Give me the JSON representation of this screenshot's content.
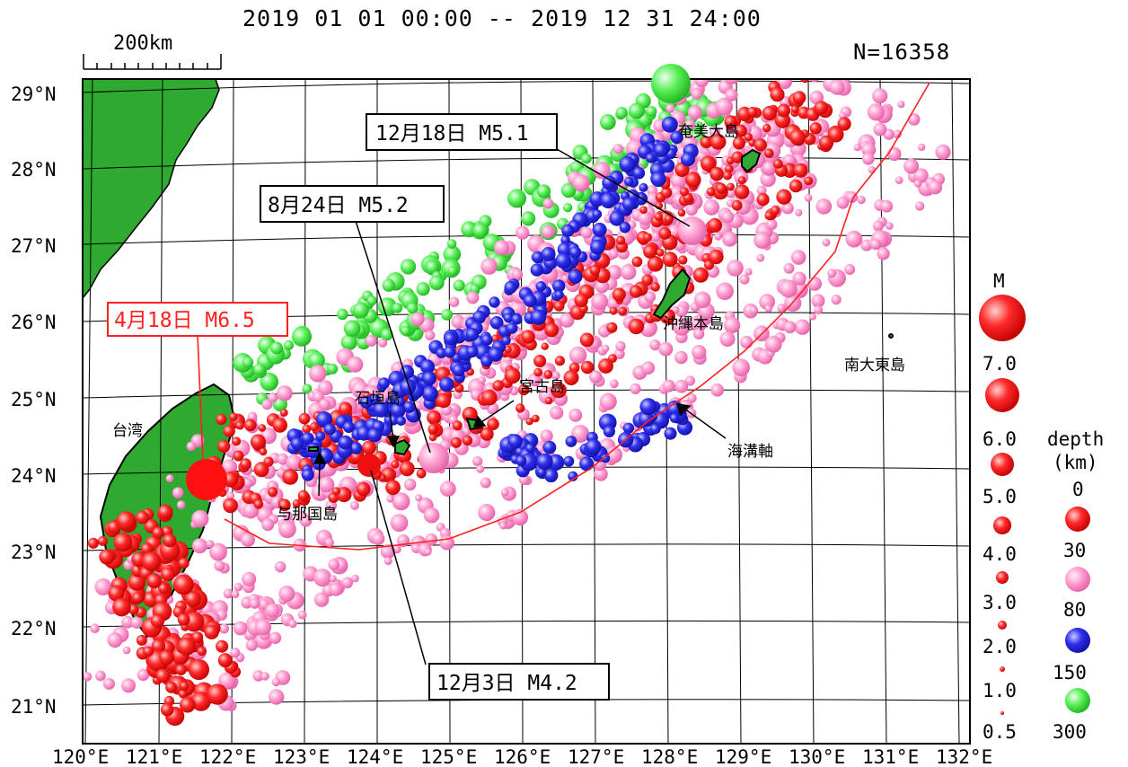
{
  "header": {
    "period": "2019 01 01 00:00 -- 2019 12 31 24:00",
    "count": "N=16358",
    "scale_label": "200km"
  },
  "colors": {
    "land": "#2fa92f",
    "shallow": "#ff2020",
    "mid": "#ff88c8",
    "deep": "#2a2ae8",
    "vdeep": "#44ee44",
    "trench": "#ff2020"
  },
  "axes": {
    "lat_labels": [
      "29°N",
      "28°N",
      "27°N",
      "26°N",
      "25°N",
      "24°N",
      "23°N",
      "22°N",
      "21°N"
    ],
    "lon_labels": [
      "120°E",
      "121°E",
      "122°E",
      "123°E",
      "124°E",
      "125°E",
      "126°E",
      "127°E",
      "128°E",
      "129°E",
      "130°E",
      "131°E",
      "132°E"
    ]
  },
  "places": {
    "amami": "奄美大島",
    "okinawa": "沖縄本島",
    "minamidaito": "南大東島",
    "miyako": "宮古島",
    "ishigaki": "石垣島",
    "yonaguni": "与那国島",
    "taiwan": "台湾",
    "trench": "海溝軸"
  },
  "events": [
    {
      "label": "12月18日 M5.1",
      "date": "12月18日",
      "mag": 5.1
    },
    {
      "label": "8月24日 M5.2",
      "date": "8月24日",
      "mag": 5.2
    },
    {
      "label": "4月18日 M6.5",
      "date": "4月18日",
      "mag": 6.5
    },
    {
      "label": "12月3日 M4.2",
      "date": "12月3日",
      "mag": 4.2
    }
  ],
  "legend": {
    "mag_title": "M",
    "mags": [
      "7.0",
      "6.0",
      "5.0",
      "4.0",
      "3.0",
      "2.0",
      "1.0",
      "0.5"
    ],
    "depth_title1": "depth",
    "depth_title2": "(km)",
    "depths": [
      "0",
      "30",
      "80",
      "150",
      "300"
    ]
  }
}
